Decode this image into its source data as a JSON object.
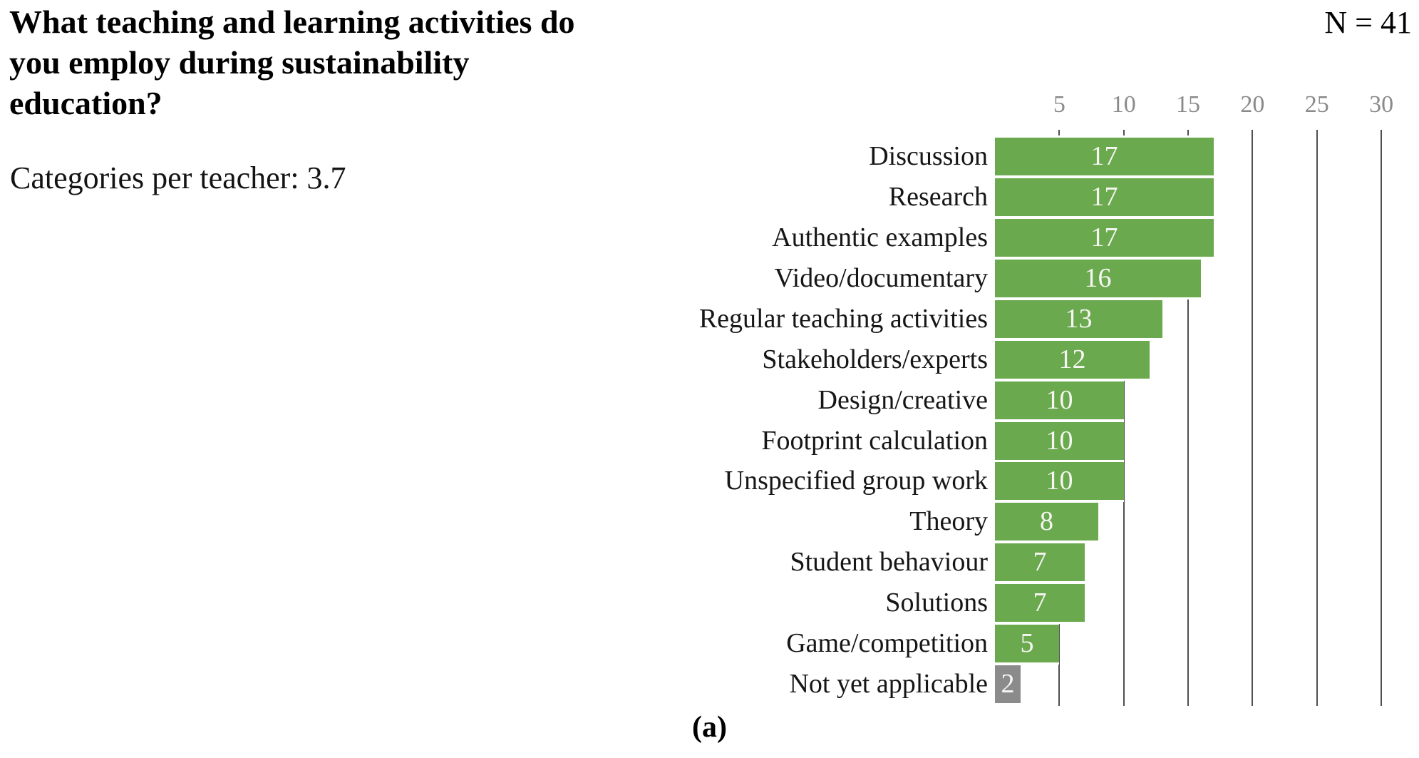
{
  "page": {
    "title_lines": [
      "What teaching and learning activities do",
      "you employ during sustainability",
      "education?"
    ],
    "subtitle": "Categories per teacher: 3.7",
    "sample_size_label": "N = 41",
    "caption": "(a)"
  },
  "colors": {
    "bar_green": "#6ba94e",
    "bar_gray": "#8b8b8b",
    "gridline": "#4f4f4f",
    "tick_label": "#8a8a8a",
    "value_label": "#f6f6f3",
    "category_label": "#161616"
  },
  "chart_data": {
    "type": "bar",
    "orientation": "horizontal",
    "title": "What teaching and learning activities do you employ during sustainability education?",
    "subtitle": "Categories per teacher: 3.7",
    "sample_size_label": "N = 41",
    "categories": [
      "Discussion",
      "Research",
      "Authentic examples",
      "Video/documentary",
      "Regular teaching activities",
      "Stakeholders/experts",
      "Design/creative",
      "Footprint calculation",
      "Unspecified group work",
      "Theory",
      "Student behaviour",
      "Solutions",
      "Game/competition",
      "Not yet applicable"
    ],
    "values": [
      17,
      17,
      17,
      16,
      13,
      12,
      10,
      10,
      10,
      8,
      7,
      7,
      5,
      2
    ],
    "bar_colors": [
      "#6ba94e",
      "#6ba94e",
      "#6ba94e",
      "#6ba94e",
      "#6ba94e",
      "#6ba94e",
      "#6ba94e",
      "#6ba94e",
      "#6ba94e",
      "#6ba94e",
      "#6ba94e",
      "#6ba94e",
      "#6ba94e",
      "#8b8b8b"
    ],
    "value_labels_shown": true,
    "x_ticks": [
      5,
      10,
      15,
      20,
      25,
      30
    ],
    "xlim": [
      0,
      31
    ],
    "axis_position": "top",
    "grid": true,
    "legend": "none",
    "caption": "(a)"
  }
}
